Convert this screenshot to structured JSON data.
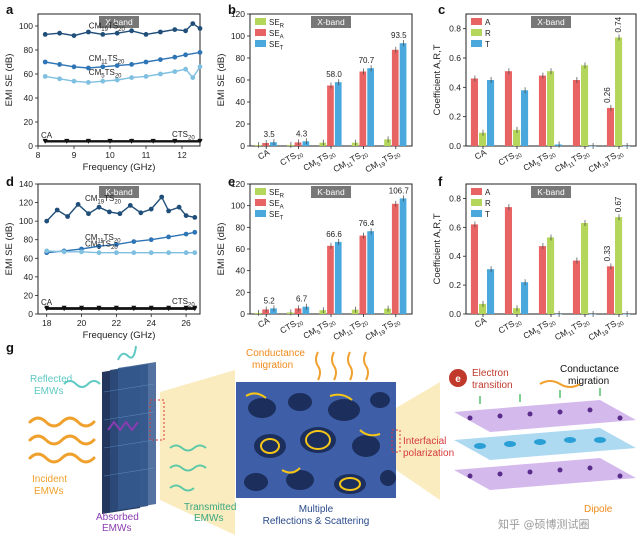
{
  "colors": {
    "ser": "#b4d65a",
    "sea": "#e86464",
    "set": "#4aa8dc",
    "cm19": "#1f4e79",
    "cm11": "#2e75b6",
    "cm5": "#7fbfe0",
    "ca": "#111111",
    "bandbox": "#777777"
  },
  "panel_labels": {
    "a": "a",
    "b": "b",
    "c": "c",
    "d": "d",
    "e": "e",
    "f": "f",
    "g": "g"
  },
  "chart_data": [
    {
      "id": "a",
      "type": "line",
      "band": "X-band",
      "xlabel": "Frequency (GHz)",
      "ylabel": "EMI SE (dB)",
      "xlim": [
        8,
        12.5
      ],
      "ylim": [
        0,
        110
      ],
      "xticks": [
        8,
        9,
        10,
        11,
        12
      ],
      "yticks": [
        0,
        20,
        40,
        60,
        80,
        100
      ],
      "series": [
        {
          "name": "CM19TS20",
          "label": "CM",
          "sub1": "19",
          "mid": "TS",
          "sub2": "20",
          "points": [
            [
              8.2,
              93
            ],
            [
              8.6,
              94
            ],
            [
              9.0,
              92
            ],
            [
              9.4,
              95
            ],
            [
              9.8,
              93
            ],
            [
              10.2,
              94
            ],
            [
              10.6,
              96
            ],
            [
              11.0,
              93
            ],
            [
              11.4,
              95
            ],
            [
              11.8,
              97
            ],
            [
              12.1,
              96
            ],
            [
              12.3,
              102
            ],
            [
              12.5,
              98
            ]
          ]
        },
        {
          "name": "CM11TS20",
          "label": "CM",
          "sub1": "11",
          "mid": "TS",
          "sub2": "20",
          "points": [
            [
              8.2,
              70
            ],
            [
              8.6,
              68
            ],
            [
              9.0,
              66
            ],
            [
              9.4,
              65
            ],
            [
              9.8,
              66
            ],
            [
              10.2,
              67
            ],
            [
              10.6,
              68
            ],
            [
              11.0,
              70
            ],
            [
              11.4,
              72
            ],
            [
              11.8,
              74
            ],
            [
              12.1,
              76
            ],
            [
              12.5,
              78
            ]
          ]
        },
        {
          "name": "CM5TS20",
          "label": "CM",
          "sub1": "5",
          "mid": "TS",
          "sub2": "20",
          "points": [
            [
              8.2,
              58
            ],
            [
              8.6,
              56
            ],
            [
              9.0,
              54
            ],
            [
              9.4,
              53
            ],
            [
              9.8,
              54
            ],
            [
              10.2,
              55
            ],
            [
              10.6,
              57
            ],
            [
              11.0,
              58
            ],
            [
              11.4,
              60
            ],
            [
              11.8,
              62
            ],
            [
              12.1,
              64
            ],
            [
              12.3,
              57
            ],
            [
              12.5,
              66
            ]
          ]
        },
        {
          "name": "CTS20",
          "label": "CTS",
          "sub1": "20",
          "mid": "",
          "sub2": "",
          "points": [
            [
              8.2,
              4.3
            ],
            [
              8.8,
              4.3
            ],
            [
              9.4,
              4.3
            ],
            [
              10.0,
              4.3
            ],
            [
              10.6,
              4.3
            ],
            [
              11.2,
              4.3
            ],
            [
              11.8,
              4.3
            ],
            [
              12.5,
              4.3
            ]
          ]
        },
        {
          "name": "CA",
          "label": "CA",
          "sub1": "",
          "mid": "",
          "sub2": "",
          "points": [
            [
              8.2,
              3.5
            ],
            [
              8.8,
              3.5
            ],
            [
              9.4,
              3.5
            ],
            [
              10.0,
              3.5
            ],
            [
              10.6,
              3.5
            ],
            [
              11.2,
              3.5
            ],
            [
              11.8,
              3.5
            ],
            [
              12.5,
              3.5
            ]
          ]
        }
      ]
    },
    {
      "id": "b",
      "type": "bar",
      "band": "X-band",
      "ylabel": "EMI SE (dB)",
      "ylim": [
        0,
        120
      ],
      "yticks": [
        0,
        20,
        40,
        60,
        80,
        100,
        120
      ],
      "categories": [
        "CA",
        "CTS20",
        "CM5TS20",
        "CM11TS20",
        "CM19TS20"
      ],
      "category_labels": [
        {
          "main": "CA",
          "s1": "",
          "mid": "",
          "s2": ""
        },
        {
          "main": "CTS",
          "s1": "20",
          "mid": "",
          "s2": ""
        },
        {
          "main": "CM",
          "s1": "5",
          "mid": "TS",
          "s2": "20"
        },
        {
          "main": "CM",
          "s1": "11",
          "mid": "TS",
          "s2": "20"
        },
        {
          "main": "CM",
          "s1": "19",
          "mid": "TS",
          "s2": "20"
        }
      ],
      "series": [
        {
          "name": "SER",
          "values": [
            0.8,
            1.0,
            3.0,
            3.0,
            6.0
          ]
        },
        {
          "name": "SEA",
          "values": [
            2.7,
            3.3,
            55.0,
            67.7,
            87.5
          ]
        },
        {
          "name": "SET",
          "values": [
            3.5,
            4.3,
            58.0,
            70.7,
            93.5
          ]
        }
      ],
      "labels": [
        "3.5",
        "4.3",
        "58.0",
        "70.7",
        "93.5"
      ],
      "legend": [
        "SE",
        "SE",
        "SE"
      ],
      "legend_subs": [
        "R",
        "A",
        "T"
      ]
    },
    {
      "id": "c",
      "type": "bar",
      "band": "X-band",
      "ylabel": "Coefficient A,R,T",
      "ylim": [
        0,
        0.9
      ],
      "yticks": [
        0.0,
        0.2,
        0.4,
        0.6,
        0.8
      ],
      "categories": [
        "CA",
        "CTS20",
        "CM5TS20",
        "CM11TS20",
        "CM19TS20"
      ],
      "category_labels": [
        {
          "main": "CA",
          "s1": "",
          "mid": "",
          "s2": ""
        },
        {
          "main": "CTS",
          "s1": "20",
          "mid": "",
          "s2": ""
        },
        {
          "main": "CM",
          "s1": "5",
          "mid": "TS",
          "s2": "20"
        },
        {
          "main": "CM",
          "s1": "11",
          "mid": "TS",
          "s2": "20"
        },
        {
          "main": "CM",
          "s1": "19",
          "mid": "TS",
          "s2": "20"
        }
      ],
      "series": [
        {
          "name": "A",
          "values": [
            0.46,
            0.51,
            0.48,
            0.45,
            0.26
          ]
        },
        {
          "name": "R",
          "values": [
            0.09,
            0.11,
            0.51,
            0.55,
            0.74
          ]
        },
        {
          "name": "T",
          "values": [
            0.45,
            0.38,
            0.01,
            0.0,
            0.0
          ]
        }
      ],
      "labels": [
        "",
        "",
        "",
        "",
        "0.26|0.74"
      ],
      "legend": [
        "A",
        "R",
        "T"
      ]
    },
    {
      "id": "d",
      "type": "line",
      "band": "K-band",
      "xlabel": "Frequency (GHz)",
      "ylabel": "EMI SE (dB)",
      "xlim": [
        17.5,
        26.8
      ],
      "ylim": [
        0,
        140
      ],
      "xticks": [
        18,
        20,
        22,
        24,
        26
      ],
      "yticks": [
        0,
        20,
        40,
        60,
        80,
        100,
        120,
        140
      ],
      "series": [
        {
          "name": "CM19TS20",
          "label": "CM",
          "sub1": "19",
          "mid": "TS",
          "sub2": "20",
          "points": [
            [
              18.0,
              100
            ],
            [
              18.6,
              112
            ],
            [
              19.2,
              105
            ],
            [
              19.8,
              118
            ],
            [
              20.4,
              108
            ],
            [
              21.0,
              115
            ],
            [
              21.6,
              110
            ],
            [
              22.2,
              108
            ],
            [
              22.8,
              117
            ],
            [
              23.4,
              109
            ],
            [
              24.0,
              113
            ],
            [
              24.6,
              126
            ],
            [
              25.0,
              111
            ],
            [
              25.6,
              115
            ],
            [
              26.0,
              106
            ],
            [
              26.5,
              104
            ]
          ]
        },
        {
          "name": "CM11TS20",
          "label": "CM",
          "sub1": "11",
          "mid": "TS",
          "sub2": "20",
          "points": [
            [
              18.0,
              66
            ],
            [
              19.0,
              68
            ],
            [
              20.0,
              70
            ],
            [
              21.0,
              73
            ],
            [
              22.0,
              75
            ],
            [
              23.0,
              78
            ],
            [
              24.0,
              80
            ],
            [
              25.0,
              83
            ],
            [
              26.0,
              86
            ],
            [
              26.5,
              88
            ]
          ]
        },
        {
          "name": "CM5TS20",
          "label": "CM",
          "sub1": "5",
          "mid": "TS",
          "sub2": "20",
          "points": [
            [
              18.0,
              68
            ],
            [
              19.0,
              67
            ],
            [
              20.0,
              67
            ],
            [
              21.0,
              66
            ],
            [
              22.0,
              66
            ],
            [
              23.0,
              66
            ],
            [
              24.0,
              66
            ],
            [
              25.0,
              66
            ],
            [
              26.0,
              66
            ],
            [
              26.5,
              66
            ]
          ]
        },
        {
          "name": "CTS20",
          "label": "CTS",
          "sub1": "20",
          "mid": "",
          "sub2": "",
          "points": [
            [
              18.0,
              6.7
            ],
            [
              19.0,
              6.7
            ],
            [
              20.0,
              6.7
            ],
            [
              21.0,
              6.7
            ],
            [
              22.0,
              6.7
            ],
            [
              23.0,
              6.7
            ],
            [
              24.0,
              6.7
            ],
            [
              25.0,
              6.7
            ],
            [
              26.0,
              6.7
            ],
            [
              26.5,
              6.7
            ]
          ]
        },
        {
          "name": "CA",
          "label": "CA",
          "sub1": "",
          "mid": "",
          "sub2": "",
          "points": [
            [
              18.0,
              5.2
            ],
            [
              19.0,
              5.2
            ],
            [
              20.0,
              5.2
            ],
            [
              21.0,
              5.2
            ],
            [
              22.0,
              5.2
            ],
            [
              23.0,
              5.2
            ],
            [
              24.0,
              5.2
            ],
            [
              25.0,
              5.2
            ],
            [
              26.0,
              5.2
            ],
            [
              26.5,
              5.2
            ]
          ]
        }
      ]
    },
    {
      "id": "e",
      "type": "bar",
      "band": "K-band",
      "ylabel": "EMI SE (dB)",
      "ylim": [
        0,
        120
      ],
      "yticks": [
        0,
        20,
        40,
        60,
        80,
        100,
        120
      ],
      "categories": [
        "CA",
        "CTS20",
        "CM5TS20",
        "CM11TS20",
        "CM19TS20"
      ],
      "category_labels": [
        {
          "main": "CA",
          "s1": "",
          "mid": "",
          "s2": ""
        },
        {
          "main": "CTS",
          "s1": "20",
          "mid": "",
          "s2": ""
        },
        {
          "main": "CM",
          "s1": "5",
          "mid": "TS",
          "s2": "20"
        },
        {
          "main": "CM",
          "s1": "11",
          "mid": "TS",
          "s2": "20"
        },
        {
          "main": "CM",
          "s1": "19",
          "mid": "TS",
          "s2": "20"
        }
      ],
      "series": [
        {
          "name": "SER",
          "values": [
            1.0,
            1.5,
            3.5,
            4.0,
            5.0
          ]
        },
        {
          "name": "SEA",
          "values": [
            4.2,
            5.2,
            63.0,
            72.4,
            101.7
          ]
        },
        {
          "name": "SET",
          "values": [
            5.2,
            6.7,
            66.6,
            76.4,
            106.7
          ]
        }
      ],
      "labels": [
        "5.2",
        "6.7",
        "66.6",
        "76.4",
        "106.7"
      ],
      "legend": [
        "SE",
        "SE",
        "SE"
      ],
      "legend_subs": [
        "R",
        "A",
        "T"
      ]
    },
    {
      "id": "f",
      "type": "bar",
      "band": "K-band",
      "ylabel": "Coefficient A,R,T",
      "ylim": [
        0,
        0.9
      ],
      "yticks": [
        0.0,
        0.2,
        0.4,
        0.6,
        0.8
      ],
      "categories": [
        "CA",
        "CTS20",
        "CM5TS20",
        "CM11TS20",
        "CM19TS20"
      ],
      "category_labels": [
        {
          "main": "CA",
          "s1": "",
          "mid": "",
          "s2": ""
        },
        {
          "main": "CTS",
          "s1": "20",
          "mid": "",
          "s2": ""
        },
        {
          "main": "CM",
          "s1": "5",
          "mid": "TS",
          "s2": "20"
        },
        {
          "main": "CM",
          "s1": "11",
          "mid": "TS",
          "s2": "20"
        },
        {
          "main": "CM",
          "s1": "19",
          "mid": "TS",
          "s2": "20"
        }
      ],
      "series": [
        {
          "name": "A",
          "values": [
            0.62,
            0.74,
            0.47,
            0.37,
            0.33
          ]
        },
        {
          "name": "R",
          "values": [
            0.07,
            0.04,
            0.53,
            0.63,
            0.67
          ]
        },
        {
          "name": "T",
          "values": [
            0.31,
            0.22,
            0.0,
            0.0,
            0.0
          ]
        }
      ],
      "labels": [
        "",
        "",
        "",
        "",
        "0.33|0.67"
      ],
      "legend": [
        "A",
        "R",
        "T"
      ]
    }
  ],
  "panel_g": {
    "reflected": "Reflected",
    "emws": "EMWs",
    "incident": "Incident",
    "absorbed": "Absorbed",
    "transmitted": "Transmitted",
    "conductance_migration_1": "Conductance",
    "conductance_migration_2": "migration",
    "multiple_1": "Multiple",
    "multiple_2": "Reflections & Scattering",
    "interfacial_1": "Interfacial",
    "interfacial_2": "polarization",
    "electron_badge": "e",
    "electron_1": "Electron",
    "electron_2": "transition",
    "cond_right_1": "Conductance",
    "cond_right_2": "migration",
    "dipole": "Dipole",
    "watermark": "知乎 @硕博测试圈"
  }
}
